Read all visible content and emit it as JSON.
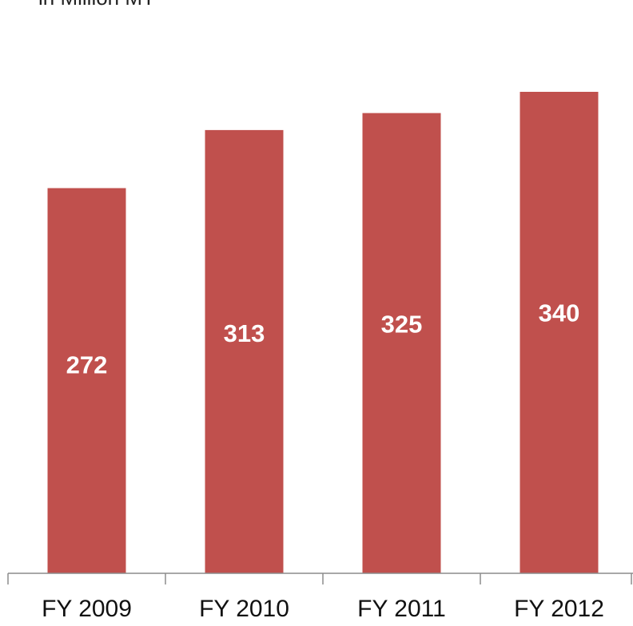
{
  "chart_data": {
    "type": "bar",
    "unit_label": "in Million MT",
    "categories": [
      "FY 2009",
      "FY 2010",
      "FY 2011",
      "FY 2012"
    ],
    "values": [
      272,
      313,
      325,
      340
    ],
    "data_labels": [
      "272",
      "313",
      "325",
      "340"
    ],
    "ylim": [
      0,
      340
    ],
    "grid": false,
    "legend": "none",
    "bar_color": "#c0504d",
    "axis_color": "#8c8c8c",
    "data_label_color": "#ffffff"
  }
}
